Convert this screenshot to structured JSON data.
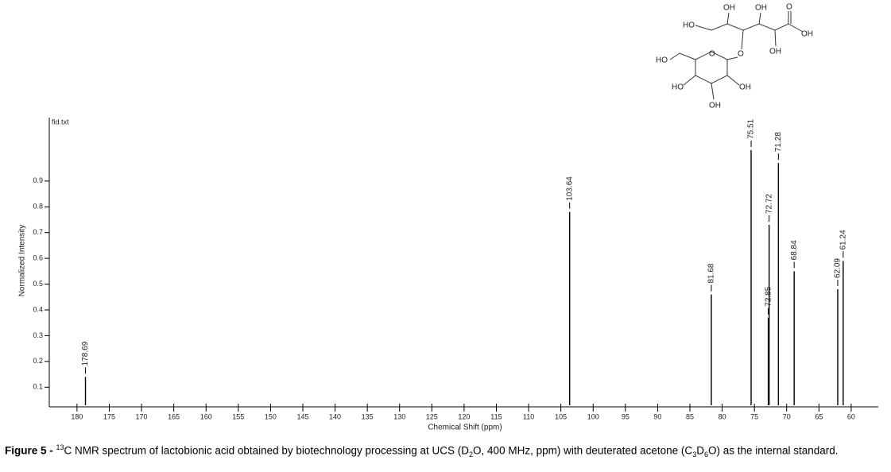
{
  "chart_data": {
    "type": "stick",
    "title": "fid.txt",
    "xlabel": "Chemical Shift (ppm)",
    "ylabel": "Normalized Intensity",
    "x": [
      178.69,
      103.64,
      81.68,
      75.51,
      72.85,
      72.72,
      71.28,
      68.84,
      62.09,
      61.24
    ],
    "values": [
      0.14,
      0.78,
      0.46,
      1.02,
      0.37,
      0.73,
      0.97,
      0.55,
      0.48,
      0.59
    ],
    "color": "#000000",
    "xlim": [
      184.3,
      55.8
    ],
    "xticks": [
      180,
      175,
      170,
      165,
      160,
      155,
      150,
      145,
      140,
      135,
      130,
      125,
      120,
      115,
      110,
      105,
      100,
      95,
      90,
      85,
      80,
      75,
      70,
      65,
      60
    ],
    "ylim": [
      0.03,
      1.14
    ],
    "yticks": [
      0.1,
      0.2,
      0.3,
      0.4,
      0.5,
      0.6,
      0.7,
      0.8,
      0.9
    ]
  },
  "molecule": {
    "labels": [
      "HO",
      "OH",
      "OH",
      "O",
      "OH",
      "OH",
      "O",
      "O",
      "HO",
      "HO",
      "OH",
      "OH"
    ]
  },
  "caption": {
    "label": "Figure 5 - ",
    "parts": [
      "13",
      "C NMR spectrum of lactobionic acid obtained by biotechnology processing at UCS (D",
      "2",
      "O, 400 MHz, ppm) with deuterated acetone (C",
      "3",
      "D",
      "6",
      "O) as the internal standard."
    ]
  }
}
